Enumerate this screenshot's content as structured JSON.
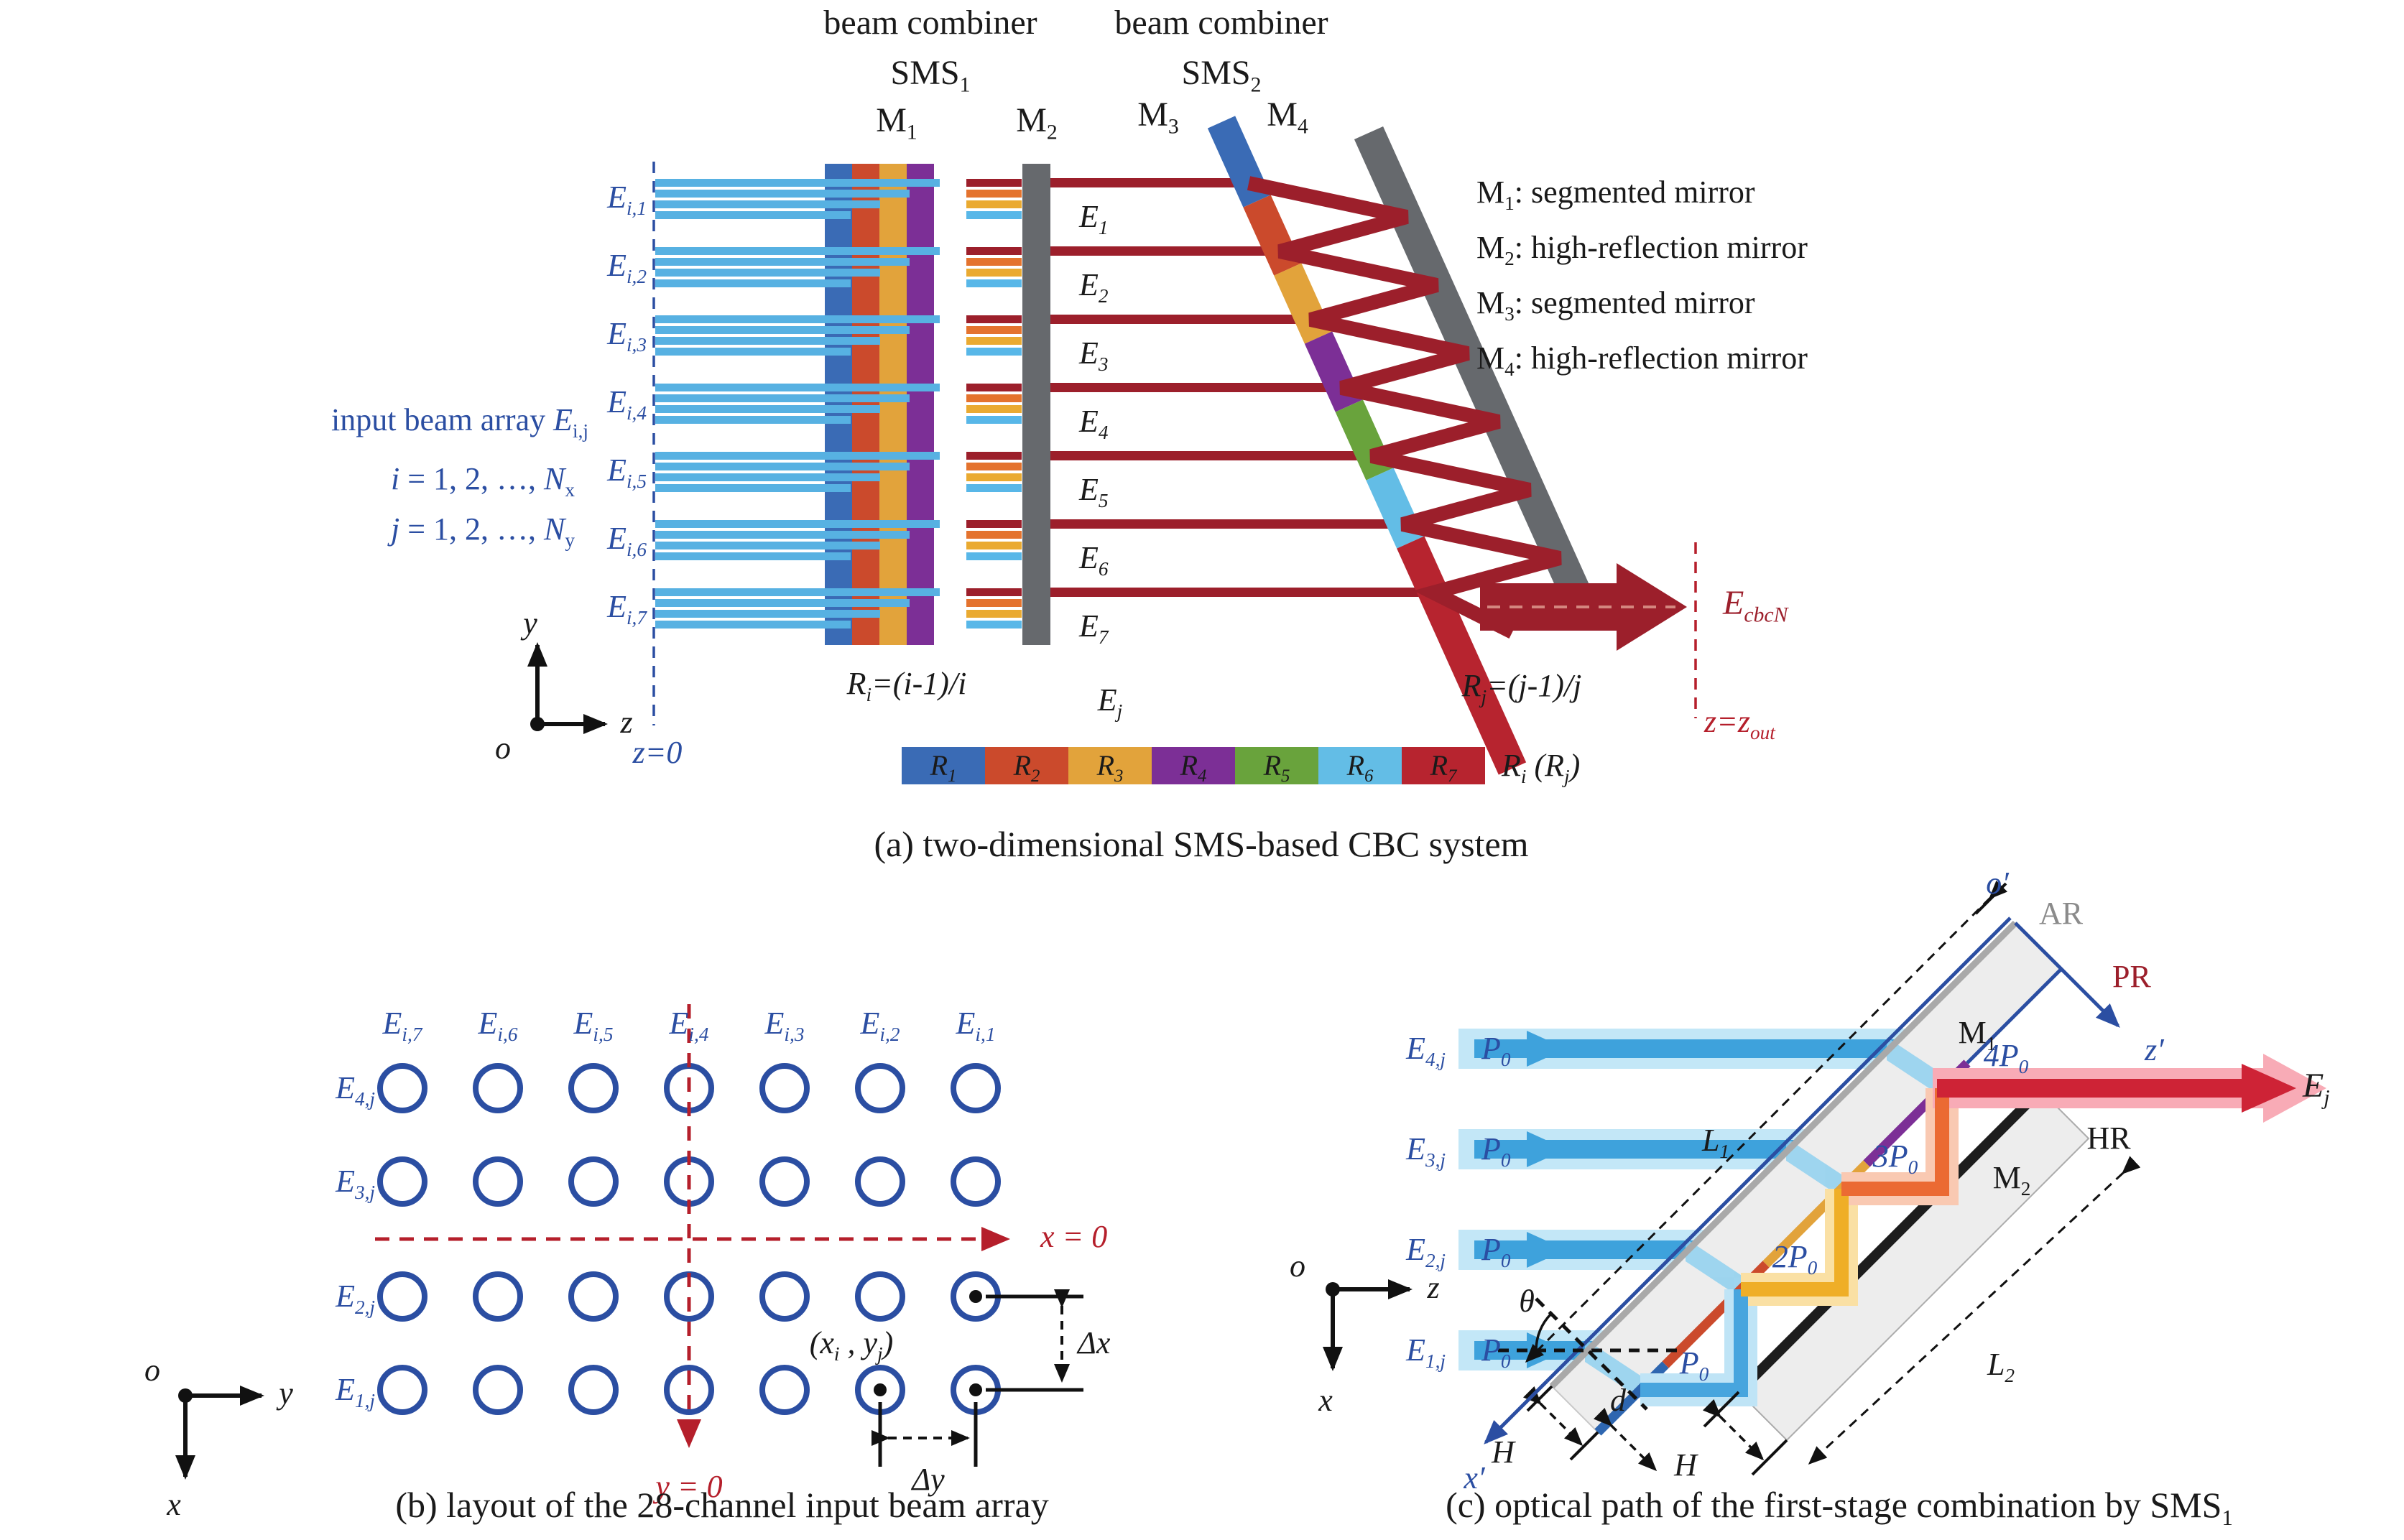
{
  "colors": {
    "r1": "#3a6bb5",
    "r2": "#cb4a2c",
    "r3": "#e2a33b",
    "r4": "#7c2f96",
    "r5": "#69a33c",
    "r6": "#63bde6",
    "r7": "#b7242f",
    "beam_dark_red": "#9c1f2b",
    "input_blue": "#57b1e2",
    "mirror_gray": "#66696d"
  },
  "panel_a": {
    "combiner1": {
      "line1": "beam combiner",
      "line2": "SMS_{1}"
    },
    "combiner2": {
      "line1": "beam combiner",
      "line2": "SMS_{2}"
    },
    "mirrors": {
      "m1": "M_{1}",
      "m2": "M_{2}",
      "m3": "M_{3}",
      "m4": "M_{4}"
    },
    "input_title": "input beam array *E*_{i,j}",
    "i_range": "*i* = 1, 2, …, *N*_{x}",
    "j_range": "*j* = 1, 2, …, *N*_{y}",
    "input_labels": [
      "E_{i,1}",
      "E_{i,2}",
      "E_{i,3}",
      "E_{i,4}",
      "E_{i,5}",
      "E_{i,6}",
      "E_{i,7}"
    ],
    "z0": "z=0",
    "axis": {
      "y": "y",
      "z": "z",
      "o": "o"
    },
    "ri_formula": "R_{i}=(i-1)/i",
    "rj_formula": "R_{j}=(j-1)/j",
    "ej": "E_{j}",
    "output_labels": [
      "E_{1}",
      "E_{2}",
      "E_{3}",
      "E_{4}",
      "E_{5}",
      "E_{6}",
      "E_{7}"
    ],
    "legend_text": [
      "M_{1}: segmented mirror",
      "M_{2}: high-reflection mirror",
      "M_{3}: segmented mirror",
      "M_{4}: high-reflection mirror"
    ],
    "output_beam": "E_{cbcN}",
    "zout": "z=z_{out}",
    "r_legend": {
      "items": [
        {
          "label": "R_{1}",
          "color": "#3a6bb5"
        },
        {
          "label": "R_{2}",
          "color": "#cb4a2c"
        },
        {
          "label": "R_{3}",
          "color": "#e2a33b"
        },
        {
          "label": "R_{4}",
          "color": "#7c2f96"
        },
        {
          "label": "R_{5}",
          "color": "#69a33c"
        },
        {
          "label": "R_{6}",
          "color": "#63bde6"
        },
        {
          "label": "R_{7}",
          "color": "#b7242f"
        }
      ],
      "note": "R_{i} (R_{j})"
    },
    "caption": "(a) two-dimensional SMS-based CBC system"
  },
  "panel_b": {
    "col_headers": [
      "E_{i,7}",
      "E_{i,6}",
      "E_{i,5}",
      "E_{i,4}",
      "E_{i,3}",
      "E_{i,2}",
      "E_{i,1}"
    ],
    "row_labels": [
      "E_{4,j}",
      "E_{3,j}",
      "E_{2,j}",
      "E_{1,j}"
    ],
    "x0": "x = 0",
    "y0": "y = 0",
    "point": "(x_{i} , y_{j})",
    "dx": "Δx",
    "dy": "Δy",
    "axis": {
      "o": "o",
      "y": "y",
      "x": "x"
    },
    "caption": "(b) layout of the 28-channel input beam array"
  },
  "panel_c": {
    "inputs": [
      {
        "label": "E_{4,j}",
        "power": "P_{0}"
      },
      {
        "label": "E_{3,j}",
        "power": "P_{0}"
      },
      {
        "label": "E_{2,j}",
        "power": "P_{0}"
      },
      {
        "label": "E_{1,j}",
        "power": "P_{0}"
      }
    ],
    "o_prime": "o′",
    "ar": "AR",
    "pr": "PR",
    "z_prime": "z′",
    "x_prime": "x′",
    "m1": "M_{1}",
    "m2": "M_{2}",
    "hr": "HR",
    "p1": "P_{0}",
    "p2": "2P_{0}",
    "p3": "3P_{0}",
    "p4": "4P_{0}",
    "ej": "E_{j}",
    "l1": "L_{1}",
    "l2": "L_{2}",
    "h1": "H",
    "h2": "H",
    "d": "d",
    "theta": "θ",
    "axis": {
      "o": "o",
      "z": "z",
      "x": "x"
    },
    "caption": "(c) optical path of the first-stage combination by SMS_{1}"
  }
}
